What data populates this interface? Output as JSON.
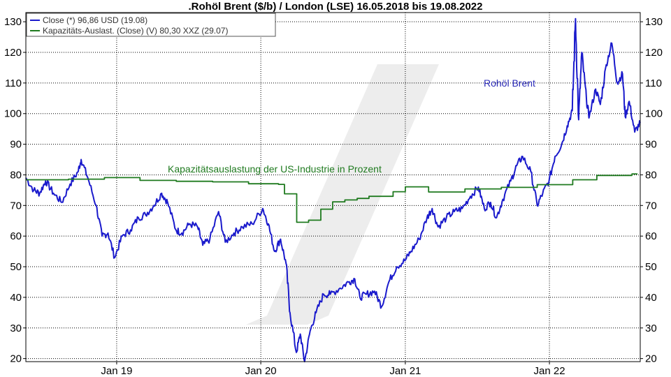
{
  "chart_data": {
    "type": "line",
    "title": ".Rohöl Brent ($/b) / London (LSE) 16.05.2018 bis 19.08.2022",
    "ylim": [
      19,
      133
    ],
    "yticks": [
      20,
      30,
      40,
      50,
      60,
      70,
      80,
      90,
      100,
      110,
      120,
      130
    ],
    "xlim": [
      "2018-05-16",
      "2022-08-19"
    ],
    "xticks": [
      {
        "date": "2019-01-01",
        "label": "Jan 19"
      },
      {
        "date": "2020-01-01",
        "label": "Jan 20"
      },
      {
        "date": "2021-01-01",
        "label": "Jan 21"
      },
      {
        "date": "2022-01-01",
        "label": "Jan 22"
      }
    ],
    "grid": true,
    "legend_position": "top-left",
    "legend": [
      {
        "label": "Close (*) 96,86 USD (19.08)",
        "color": "#1a1acc"
      },
      {
        "label": "Kapazitäts-Auslast. (Close) (V) 80,30 XXZ (29.07)",
        "color": "#1f7a1f"
      }
    ],
    "annotations": [
      {
        "text": "Rohöl Brent",
        "color": "#2b2bb8"
      },
      {
        "text": "Kapazitätsauslastung der US-Industrie in Prozent",
        "color": "#1f7a1f"
      }
    ],
    "series": [
      {
        "name": "Close (*)",
        "color": "#1a1acc",
        "points": [
          [
            "2018-05-16",
            79
          ],
          [
            "2018-06-05",
            75
          ],
          [
            "2018-06-20",
            74
          ],
          [
            "2018-07-05",
            78
          ],
          [
            "2018-07-25",
            74
          ],
          [
            "2018-08-15",
            71
          ],
          [
            "2018-09-05",
            77
          ],
          [
            "2018-09-25",
            81
          ],
          [
            "2018-10-03",
            85
          ],
          [
            "2018-10-20",
            79
          ],
          [
            "2018-11-10",
            70
          ],
          [
            "2018-11-25",
            60
          ],
          [
            "2018-12-10",
            61
          ],
          [
            "2018-12-27",
            53
          ],
          [
            "2019-01-15",
            60
          ],
          [
            "2019-02-05",
            62
          ],
          [
            "2019-02-25",
            66
          ],
          [
            "2019-03-15",
            67
          ],
          [
            "2019-04-05",
            70
          ],
          [
            "2019-04-25",
            74
          ],
          [
            "2019-05-10",
            71
          ],
          [
            "2019-05-31",
            62
          ],
          [
            "2019-06-15",
            61
          ],
          [
            "2019-07-05",
            64
          ],
          [
            "2019-07-25",
            63
          ],
          [
            "2019-08-07",
            57
          ],
          [
            "2019-08-25",
            59
          ],
          [
            "2019-09-16",
            68
          ],
          [
            "2019-10-03",
            58
          ],
          [
            "2019-10-25",
            61
          ],
          [
            "2019-11-15",
            63
          ],
          [
            "2019-12-10",
            64
          ],
          [
            "2020-01-06",
            69
          ],
          [
            "2020-01-20",
            64
          ],
          [
            "2020-02-05",
            55
          ],
          [
            "2020-02-20",
            59
          ],
          [
            "2020-03-05",
            51
          ],
          [
            "2020-03-15",
            35
          ],
          [
            "2020-03-31",
            22
          ],
          [
            "2020-04-10",
            28
          ],
          [
            "2020-04-21",
            19
          ],
          [
            "2020-05-05",
            29
          ],
          [
            "2020-05-20",
            35
          ],
          [
            "2020-06-08",
            41
          ],
          [
            "2020-06-25",
            41
          ],
          [
            "2020-07-20",
            43
          ],
          [
            "2020-08-10",
            45
          ],
          [
            "2020-08-26",
            46
          ],
          [
            "2020-09-08",
            40
          ],
          [
            "2020-09-25",
            41
          ],
          [
            "2020-10-15",
            42
          ],
          [
            "2020-11-02",
            37
          ],
          [
            "2020-11-20",
            45
          ],
          [
            "2020-12-10",
            50
          ],
          [
            "2020-12-31",
            52
          ],
          [
            "2021-01-15",
            55
          ],
          [
            "2021-02-05",
            59
          ],
          [
            "2021-02-25",
            66
          ],
          [
            "2021-03-10",
            69
          ],
          [
            "2021-03-25",
            63
          ],
          [
            "2021-04-15",
            66
          ],
          [
            "2021-05-05",
            68
          ],
          [
            "2021-05-25",
            69
          ],
          [
            "2021-06-15",
            73
          ],
          [
            "2021-07-05",
            76
          ],
          [
            "2021-07-20",
            69
          ],
          [
            "2021-08-05",
            71
          ],
          [
            "2021-08-20",
            66
          ],
          [
            "2021-09-05",
            72
          ],
          [
            "2021-09-25",
            78
          ],
          [
            "2021-10-10",
            83
          ],
          [
            "2021-10-25",
            86
          ],
          [
            "2021-11-15",
            81
          ],
          [
            "2021-12-01",
            70
          ],
          [
            "2021-12-15",
            74
          ],
          [
            "2021-12-31",
            78
          ],
          [
            "2022-01-15",
            86
          ],
          [
            "2022-02-01",
            90
          ],
          [
            "2022-02-15",
            96
          ],
          [
            "2022-02-28",
            101
          ],
          [
            "2022-03-08",
            131
          ],
          [
            "2022-03-16",
            98
          ],
          [
            "2022-03-24",
            120
          ],
          [
            "2022-04-05",
            104
          ],
          [
            "2022-04-12",
            99
          ],
          [
            "2022-04-28",
            108
          ],
          [
            "2022-05-10",
            103
          ],
          [
            "2022-05-25",
            116
          ],
          [
            "2022-06-08",
            123
          ],
          [
            "2022-06-22",
            110
          ],
          [
            "2022-07-05",
            113
          ],
          [
            "2022-07-12",
            99
          ],
          [
            "2022-07-22",
            104
          ],
          [
            "2022-08-05",
            94
          ],
          [
            "2022-08-19",
            97
          ]
        ]
      },
      {
        "name": "Kapazitäts-Auslast. (Close) (V)",
        "color": "#1f7a1f",
        "points": [
          [
            "2018-05-16",
            78.4
          ],
          [
            "2018-09-01",
            78.6
          ],
          [
            "2018-12-01",
            79.1
          ],
          [
            "2019-03-01",
            78.2
          ],
          [
            "2019-06-01",
            77.9
          ],
          [
            "2019-09-01",
            77.7
          ],
          [
            "2019-12-01",
            77.1
          ],
          [
            "2020-02-15",
            76.9
          ],
          [
            "2020-03-01",
            73.8
          ],
          [
            "2020-04-01",
            64.5
          ],
          [
            "2020-05-01",
            65.2
          ],
          [
            "2020-06-01",
            68.8
          ],
          [
            "2020-07-01",
            71.2
          ],
          [
            "2020-08-01",
            71.8
          ],
          [
            "2020-09-01",
            72.3
          ],
          [
            "2020-10-01",
            73.0
          ],
          [
            "2020-12-01",
            74.5
          ],
          [
            "2021-01-01",
            76.1
          ],
          [
            "2021-03-01",
            74.4
          ],
          [
            "2021-06-01",
            75.4
          ],
          [
            "2021-09-01",
            75.9
          ],
          [
            "2021-12-01",
            76.8
          ],
          [
            "2022-03-01",
            78.4
          ],
          [
            "2022-05-01",
            79.8
          ],
          [
            "2022-07-29",
            80.3
          ]
        ]
      }
    ]
  }
}
